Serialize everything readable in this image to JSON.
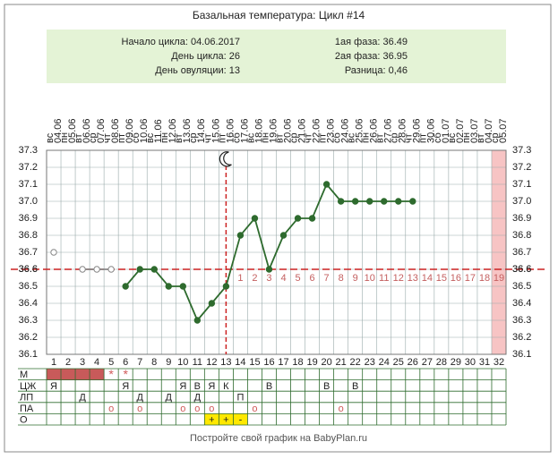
{
  "chart_data": {
    "type": "line",
    "title": "Базальная температура: Цикл #14",
    "info": {
      "left": [
        "Начало цикла: 04.06.2017",
        "День цикла: 26",
        "День овуляции: 13"
      ],
      "right": [
        "1ая фаза: 36.49",
        "2ая фаза: 36.95",
        "Разница: 0,46"
      ]
    },
    "categories": [
      "04.06",
      "05.06",
      "06.06",
      "07.06",
      "08.06",
      "09.06",
      "10.06",
      "11.06",
      "12.06",
      "13.06",
      "14.06",
      "15.06",
      "16.06",
      "17.06",
      "18.06",
      "19.06",
      "20.06",
      "21.06",
      "22.06",
      "23.06",
      "24.06",
      "25.06",
      "26.06",
      "27.06",
      "28.06",
      "29.06",
      "30.06",
      "01.07",
      "02.07",
      "03.07",
      "04.07",
      "05.07"
    ],
    "weekdays": [
      "вс",
      "пн",
      "вт",
      "ср",
      "чт",
      "пт",
      "сб",
      "вс",
      "пн",
      "вт",
      "ср",
      "чт",
      "пт",
      "сб",
      "вс",
      "пн",
      "вт",
      "ср",
      "чт",
      "пт",
      "сб",
      "вс",
      "пн",
      "вт",
      "ср",
      "чт",
      "пт",
      "сб",
      "вс",
      "пн",
      "вт",
      "ср"
    ],
    "days": [
      1,
      2,
      3,
      4,
      5,
      6,
      7,
      8,
      9,
      10,
      11,
      12,
      13,
      14,
      15,
      16,
      17,
      18,
      19,
      20,
      21,
      22,
      23,
      24,
      25,
      26,
      27,
      28,
      29,
      30,
      31,
      32
    ],
    "ylim": [
      36.1,
      37.3
    ],
    "yticks": [
      36.1,
      36.2,
      36.3,
      36.4,
      36.5,
      36.6,
      36.7,
      36.8,
      36.9,
      {
        "value": 37,
        "label": "37.0"
      },
      37.1,
      37.2,
      37.3
    ],
    "grid": true,
    "series": [
      {
        "style": "hollow",
        "color": "#888888",
        "values": [
          36.7,
          null,
          36.6,
          36.6,
          36.6,
          null,
          null,
          null,
          null,
          null,
          null,
          null,
          null,
          null,
          null,
          null,
          null,
          null,
          null,
          null,
          null,
          null,
          null,
          null,
          null,
          null,
          null,
          null,
          null,
          null,
          null,
          null
        ]
      },
      {
        "style": "filled",
        "color": "#2e6b2e",
        "values": [
          null,
          null,
          null,
          null,
          null,
          36.5,
          36.6,
          36.6,
          36.5,
          36.5,
          36.3,
          36.4,
          36.5,
          36.8,
          36.9,
          36.6,
          36.8,
          36.9,
          36.9,
          37.1,
          37.0,
          37.0,
          37.0,
          37.0,
          37.0,
          37.0,
          null,
          null,
          null,
          null,
          null,
          null
        ]
      }
    ],
    "coverline": 36.6,
    "coverline_color": "#cc2222",
    "ovulation_day": 13,
    "luteal_days": [
      1,
      2,
      3,
      4,
      5,
      6,
      7,
      8,
      9,
      10,
      11,
      12,
      13,
      14,
      15,
      16,
      17,
      18,
      19
    ],
    "highlight_day": 32,
    "highlight_color": "#f7c4c4",
    "period_days": [
      1,
      2,
      3,
      4
    ],
    "period_color": "#c85a5a",
    "rows": [
      {
        "label": "М",
        "cells": [
          null,
          null,
          null,
          null,
          "*",
          "*",
          null,
          null,
          null,
          null,
          null,
          null,
          null,
          null,
          null,
          null,
          null,
          null,
          null,
          null,
          null,
          null,
          null,
          null,
          null,
          null,
          null,
          null,
          null,
          null,
          null,
          null
        ]
      },
      {
        "label": "ЦЖ",
        "cells": [
          "Я",
          null,
          null,
          null,
          null,
          "Я",
          null,
          null,
          null,
          "Я",
          "В",
          "Я",
          "К",
          null,
          null,
          "В",
          null,
          null,
          null,
          "В",
          null,
          "В",
          null,
          null,
          null,
          null,
          null,
          null,
          null,
          null,
          null,
          null
        ]
      },
      {
        "label": "ЛП",
        "cells": [
          null,
          null,
          "Д",
          null,
          null,
          null,
          "Д",
          null,
          "Д",
          null,
          "Д",
          null,
          null,
          "П",
          null,
          null,
          null,
          null,
          null,
          null,
          null,
          null,
          null,
          null,
          null,
          null,
          null,
          null,
          null,
          null,
          null,
          null
        ]
      },
      {
        "label": "ПА",
        "cells": [
          null,
          null,
          null,
          null,
          "о",
          null,
          "о",
          null,
          null,
          "о",
          "о",
          "о",
          null,
          null,
          "о",
          null,
          null,
          null,
          null,
          null,
          "о",
          null,
          null,
          null,
          null,
          null,
          null,
          null,
          null,
          null,
          null,
          null
        ]
      },
      {
        "label": "О",
        "cells": [
          null,
          null,
          null,
          null,
          null,
          null,
          null,
          null,
          null,
          null,
          null,
          "+",
          "+",
          "-",
          null,
          null,
          null,
          null,
          null,
          null,
          null,
          null,
          null,
          null,
          null,
          null,
          null,
          null,
          null,
          null,
          null,
          null
        ]
      }
    ],
    "test_cell_color": "#ffe800",
    "footer": "Постройте свой график на BabyPlan.ru"
  }
}
